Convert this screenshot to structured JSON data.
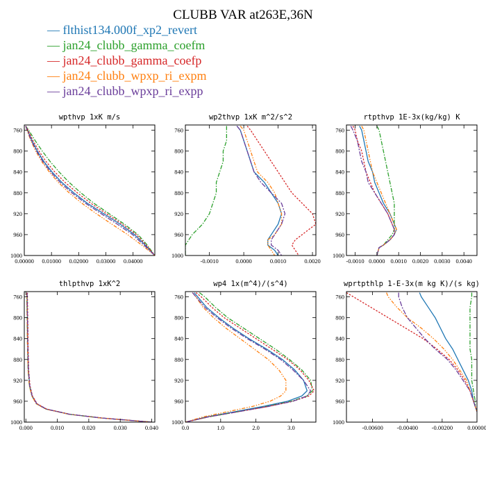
{
  "title": "CLUBB VAR at263E,36N",
  "legend": [
    {
      "label": "flthist134.000f_xp2_revert",
      "color": "#1f77b4"
    },
    {
      "label": "jan24_clubb_gamma_coefm",
      "color": "#2ca02c"
    },
    {
      "label": "jan24_clubb_gamma_coefp",
      "color": "#d62728"
    },
    {
      "label": "jan24_clubb_wpxp_ri_expm",
      "color": "#ff7f0e"
    },
    {
      "label": "jan24_clubb_wpxp_ri_expp",
      "color": "#6a3d9a"
    }
  ],
  "chart_data": [
    {
      "type": "line",
      "title": "wpthvp  1xK m/s",
      "xlim": [
        0.0,
        0.048
      ],
      "ylim": [
        1000,
        750
      ],
      "xticks": [
        0,
        0.01,
        0.02,
        0.03,
        0.04
      ],
      "xticklabels": [
        "0.00000",
        "0.01000",
        "0.02000",
        "0.03000",
        "0.04000"
      ],
      "yticks": [
        760,
        800,
        840,
        880,
        920,
        960,
        1000
      ],
      "yticklabels": [
        "760",
        "800",
        "840",
        "880",
        "920",
        "960",
        "1000"
      ],
      "y": [
        752,
        760,
        780,
        800,
        820,
        840,
        860,
        880,
        900,
        920,
        940,
        960,
        980,
        1000
      ],
      "series": [
        {
          "values": [
            0.0005,
            0.0012,
            0.0028,
            0.0048,
            0.0072,
            0.0102,
            0.0138,
            0.0182,
            0.0232,
            0.0292,
            0.0352,
            0.0405,
            0.0445,
            0.048
          ]
        },
        {
          "values": [
            0.0005,
            0.0016,
            0.004,
            0.0066,
            0.0095,
            0.0128,
            0.0165,
            0.0208,
            0.0256,
            0.0312,
            0.0368,
            0.0418,
            0.0452,
            0.048
          ]
        },
        {
          "values": [
            0.0005,
            0.0014,
            0.0032,
            0.0054,
            0.008,
            0.0112,
            0.015,
            0.0195,
            0.0245,
            0.0302,
            0.036,
            0.0412,
            0.0448,
            0.048
          ]
        },
        {
          "values": [
            0.0005,
            0.001,
            0.0024,
            0.0042,
            0.0064,
            0.0092,
            0.0125,
            0.0165,
            0.0212,
            0.0265,
            0.0322,
            0.038,
            0.0432,
            0.048
          ]
        },
        {
          "values": [
            0.0005,
            0.0011,
            0.0026,
            0.0045,
            0.0068,
            0.0097,
            0.0132,
            0.0175,
            0.0225,
            0.0283,
            0.0342,
            0.0398,
            0.044,
            0.048
          ]
        }
      ]
    },
    {
      "type": "line",
      "title": "wp2thvp  1xK m^2/s^2",
      "xlim": [
        -0.0017,
        0.0021
      ],
      "ylim": [
        1000,
        750
      ],
      "xticks": [
        -0.001,
        0.0,
        0.001,
        0.002
      ],
      "xticklabels": [
        "-0.0010",
        "0.0000",
        "0.0010",
        "0.0020"
      ],
      "yticks": [
        760,
        800,
        840,
        880,
        920,
        960,
        1000
      ],
      "yticklabels": [
        "760",
        "800",
        "840",
        "880",
        "920",
        "960",
        "1000"
      ],
      "y": [
        752,
        760,
        780,
        800,
        820,
        840,
        860,
        880,
        900,
        920,
        940,
        960,
        970,
        980,
        990,
        1000
      ],
      "series": [
        {
          "values": [
            -0.0002,
            -0.0001,
            0.0,
            0.0001,
            0.0002,
            0.0003,
            0.0006,
            0.0008,
            0.001,
            0.0011,
            0.001,
            0.0008,
            0.0007,
            0.0007,
            0.0009,
            0.001
          ]
        },
        {
          "values": [
            -0.0005,
            -0.0005,
            -0.0005,
            -0.0006,
            -0.0006,
            -0.0007,
            -0.0008,
            -0.0008,
            -0.0009,
            -0.001,
            -0.0012,
            -0.0015,
            -0.0016,
            -0.0017,
            -0.0017,
            -0.0017
          ]
        },
        {
          "values": [
            0.0001,
            0.0002,
            0.0004,
            0.0006,
            0.0008,
            0.001,
            0.0012,
            0.0014,
            0.0017,
            0.002,
            0.0021,
            0.0017,
            0.0015,
            0.0014,
            0.0015,
            0.0016
          ]
        },
        {
          "values": [
            -0.0001,
            0.0,
            0.0001,
            0.0002,
            0.0003,
            0.0004,
            0.0007,
            0.0009,
            0.001,
            0.0011,
            0.0011,
            0.0009,
            0.0007,
            0.0007,
            0.0008,
            0.0009
          ]
        },
        {
          "values": [
            -0.0002,
            -0.0001,
            0.0,
            0.0001,
            0.0002,
            0.0003,
            0.0005,
            0.0008,
            0.0011,
            0.0012,
            0.0011,
            0.0009,
            0.0008,
            0.0008,
            0.001,
            0.0011
          ]
        }
      ]
    },
    {
      "type": "line",
      "title": "rtpthvp  1E-3x(kg/kg) K",
      "xlim": [
        -0.0014,
        0.0046
      ],
      "ylim": [
        1000,
        750
      ],
      "xticks": [
        -0.001,
        0.0,
        0.001,
        0.002,
        0.003,
        0.004
      ],
      "xticklabels": [
        "-0.0010",
        "0.0000",
        "0.0010",
        "0.0020",
        "0.0030",
        "0.0040"
      ],
      "yticks": [
        760,
        800,
        840,
        880,
        920,
        960,
        1000
      ],
      "yticklabels": [
        "760",
        "800",
        "840",
        "880",
        "920",
        "960",
        "1000"
      ],
      "y": [
        752,
        760,
        780,
        800,
        820,
        840,
        860,
        880,
        900,
        920,
        940,
        950,
        960,
        970,
        980,
        985,
        1000
      ],
      "series": [
        {
          "values": [
            -0.0008,
            -0.0007,
            -0.0006,
            -0.0005,
            -0.0004,
            -0.0002,
            -0.0001,
            0.0001,
            0.0003,
            0.0006,
            0.0008,
            0.0009,
            0.0008,
            0.0006,
            0.0003,
            0.0001,
            0.0
          ]
        },
        {
          "values": [
            0.0,
            0.0001,
            0.0002,
            0.0003,
            0.0004,
            0.0005,
            0.0006,
            0.0007,
            0.0008,
            0.0008,
            0.0008,
            0.0008,
            0.0007,
            0.0005,
            0.0003,
            0.0001,
            0.0
          ]
        },
        {
          "values": [
            -0.0011,
            -0.001,
            -0.0009,
            -0.0007,
            -0.0006,
            -0.0005,
            -0.0003,
            -0.0001,
            0.0002,
            0.0005,
            0.0007,
            0.0008,
            0.0008,
            0.0006,
            0.0003,
            0.0001,
            0.0
          ]
        },
        {
          "values": [
            -0.0007,
            -0.0006,
            -0.0005,
            -0.0004,
            -0.0003,
            -0.0002,
            0.0,
            0.0002,
            0.0004,
            0.0006,
            0.0008,
            0.0009,
            0.0008,
            0.0006,
            0.0003,
            0.0001,
            0.0
          ]
        },
        {
          "values": [
            -0.0012,
            -0.0011,
            -0.0009,
            -0.0008,
            -0.0007,
            -0.0005,
            -0.0004,
            -0.0001,
            0.0002,
            0.0005,
            0.0007,
            0.0008,
            0.0008,
            0.0006,
            0.0003,
            0.0001,
            0.0
          ]
        }
      ]
    },
    {
      "type": "line",
      "title": "thlpthvp  1xK^2",
      "xlim": [
        -0.0005,
        0.041
      ],
      "ylim": [
        1000,
        750
      ],
      "xticks": [
        0.0,
        0.01,
        0.02,
        0.03,
        0.04
      ],
      "xticklabels": [
        "0.000",
        "0.010",
        "0.020",
        "0.030",
        "0.040"
      ],
      "yticks": [
        760,
        800,
        840,
        880,
        920,
        960,
        1000
      ],
      "yticklabels": [
        "760",
        "800",
        "840",
        "880",
        "920",
        "960",
        "1000"
      ],
      "y": [
        752,
        760,
        800,
        850,
        900,
        930,
        950,
        965,
        975,
        985,
        992,
        998,
        1000
      ],
      "series": [
        {
          "values": [
            0.0004,
            0.0004,
            0.0005,
            0.0006,
            0.0008,
            0.0012,
            0.002,
            0.0035,
            0.0065,
            0.014,
            0.024,
            0.036,
            0.04
          ]
        },
        {
          "values": [
            0.0003,
            0.0003,
            0.0004,
            0.0005,
            0.0007,
            0.0011,
            0.0019,
            0.0034,
            0.0064,
            0.0138,
            0.0238,
            0.0358,
            0.04
          ]
        },
        {
          "values": [
            0.0005,
            0.0005,
            0.0006,
            0.0007,
            0.0009,
            0.0013,
            0.0021,
            0.0036,
            0.0066,
            0.0141,
            0.0241,
            0.0361,
            0.04
          ]
        },
        {
          "values": [
            0.0003,
            0.0003,
            0.0004,
            0.0005,
            0.0007,
            0.0011,
            0.0019,
            0.0033,
            0.0063,
            0.0137,
            0.0237,
            0.0357,
            0.04
          ]
        },
        {
          "values": [
            0.0004,
            0.0004,
            0.0005,
            0.0006,
            0.0008,
            0.0012,
            0.002,
            0.0035,
            0.0065,
            0.0139,
            0.0239,
            0.0359,
            0.04
          ]
        }
      ]
    },
    {
      "type": "line",
      "title": "wp4  1x(m^4)/(s^4)",
      "xlim": [
        0.0,
        3.7
      ],
      "ylim": [
        1000,
        750
      ],
      "xticks": [
        0.0,
        1.0,
        2.0,
        3.0
      ],
      "xticklabels": [
        "0.0",
        "1.0",
        "2.0",
        "3.0"
      ],
      "yticks": [
        760,
        800,
        840,
        880,
        920,
        960,
        1000
      ],
      "yticklabels": [
        "760",
        "800",
        "840",
        "880",
        "920",
        "960",
        "1000"
      ],
      "y": [
        752,
        760,
        780,
        800,
        820,
        840,
        860,
        880,
        900,
        920,
        940,
        950,
        960,
        970,
        980,
        990,
        1000
      ],
      "series": [
        {
          "values": [
            0.25,
            0.35,
            0.6,
            0.95,
            1.35,
            1.8,
            2.3,
            2.75,
            3.1,
            3.35,
            3.45,
            3.3,
            2.9,
            2.2,
            1.4,
            0.6,
            0.0
          ]
        },
        {
          "values": [
            0.4,
            0.55,
            0.85,
            1.2,
            1.65,
            2.1,
            2.55,
            2.95,
            3.3,
            3.55,
            3.6,
            3.45,
            3.0,
            2.3,
            1.5,
            0.65,
            0.0
          ]
        },
        {
          "values": [
            0.3,
            0.45,
            0.75,
            1.1,
            1.55,
            2.0,
            2.45,
            2.9,
            3.25,
            3.5,
            3.65,
            3.5,
            3.05,
            2.35,
            1.5,
            0.65,
            0.0
          ]
        },
        {
          "values": [
            0.2,
            0.3,
            0.5,
            0.8,
            1.15,
            1.55,
            1.95,
            2.35,
            2.65,
            2.85,
            2.85,
            2.7,
            2.4,
            1.9,
            1.2,
            0.5,
            0.0
          ]
        },
        {
          "values": [
            0.2,
            0.3,
            0.55,
            0.9,
            1.3,
            1.75,
            2.25,
            2.7,
            3.05,
            3.35,
            3.55,
            3.45,
            3.05,
            2.35,
            1.5,
            0.65,
            0.0
          ]
        }
      ]
    },
    {
      "type": "line",
      "title": "wprtpthlp  1-E-3x(m kg K)/(s kg)",
      "xlim": [
        -0.0075,
        0.0
      ],
      "ylim": [
        1000,
        750
      ],
      "xticks": [
        -0.006,
        -0.004,
        -0.002,
        0.0
      ],
      "xticklabels": [
        "-0.00600",
        "-0.00400",
        "-0.00200",
        "0.00000"
      ],
      "yticks": [
        760,
        800,
        840,
        880,
        920,
        960,
        1000
      ],
      "yticklabels": [
        "760",
        "800",
        "840",
        "880",
        "920",
        "960",
        "1000"
      ],
      "y": [
        752,
        760,
        780,
        800,
        820,
        840,
        860,
        880,
        900,
        920,
        940,
        960,
        970,
        980
      ],
      "series": [
        {
          "values": [
            -0.0033,
            -0.0032,
            -0.0028,
            -0.0024,
            -0.0021,
            -0.0018,
            -0.0014,
            -0.0011,
            -0.0008,
            -0.0005,
            -0.0003,
            -0.0002,
            -0.0001,
            0.0
          ]
        },
        {
          "values": [
            -0.0003,
            -0.0003,
            -0.0004,
            -0.0004,
            -0.0004,
            -0.0004,
            -0.0004,
            -0.0003,
            -0.0003,
            -0.0003,
            -0.0002,
            -0.0001,
            -0.0001,
            0.0
          ]
        },
        {
          "values": [
            -0.0075,
            -0.0071,
            -0.0061,
            -0.0051,
            -0.0041,
            -0.0031,
            -0.0023,
            -0.0016,
            -0.0011,
            -0.0007,
            -0.0004,
            -0.0002,
            -0.0001,
            0.0
          ]
        },
        {
          "values": [
            -0.0052,
            -0.0051,
            -0.0046,
            -0.004,
            -0.0032,
            -0.0025,
            -0.0019,
            -0.0014,
            -0.001,
            -0.0006,
            -0.0004,
            -0.0002,
            -0.0001,
            0.0
          ]
        },
        {
          "values": [
            -0.0045,
            -0.0045,
            -0.0043,
            -0.004,
            -0.0035,
            -0.003,
            -0.0024,
            -0.0017,
            -0.0012,
            -0.0008,
            -0.0004,
            -0.0002,
            -0.0001,
            0.0
          ]
        }
      ]
    }
  ]
}
